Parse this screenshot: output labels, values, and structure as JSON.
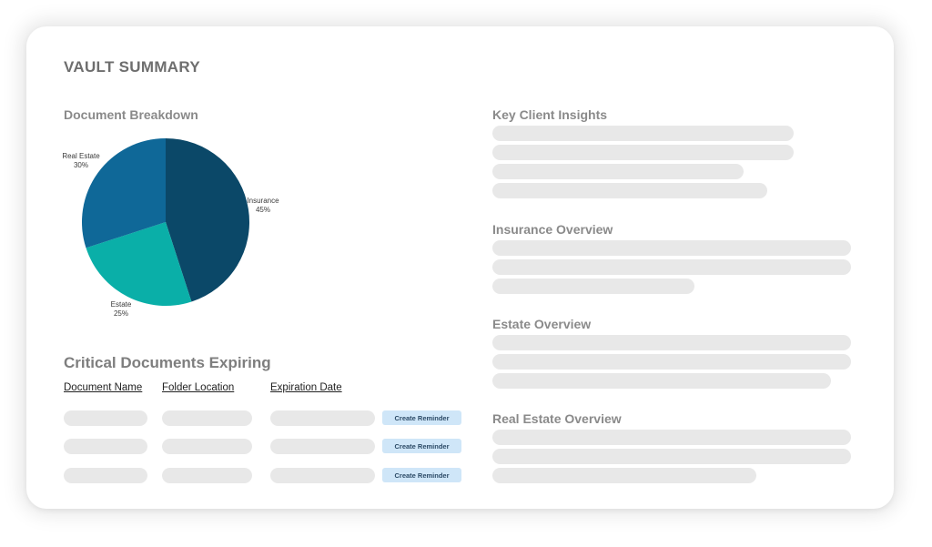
{
  "vault": {
    "title": "VAULT SUMMARY"
  },
  "document_breakdown": {
    "heading": "Document Breakdown",
    "chart_data": {
      "type": "pie",
      "categories": [
        "Insurance",
        "Estate",
        "Real Estate"
      ],
      "values": [
        45,
        25,
        30
      ],
      "labels": [
        "45%",
        "25%",
        "30%"
      ],
      "colors": [
        "#0b4868",
        "#0aafa8",
        "#0f6898"
      ]
    }
  },
  "critical_documents": {
    "heading": "Critical Documents Expiring",
    "columns": [
      "Document Name",
      "Folder Location",
      "Expiration Date"
    ],
    "reminder_label": "Create Reminder"
  },
  "insights": {
    "key_client_insights": "Key Client Insights",
    "insurance_overview": "Insurance Overview",
    "estate_overview": "Estate Overview",
    "real_estate_overview": "Real Estate Overview"
  },
  "colors": {
    "placeholder": "#e8e8e8",
    "button_bg": "#cfe6f8",
    "button_text": "#2b4a66"
  }
}
